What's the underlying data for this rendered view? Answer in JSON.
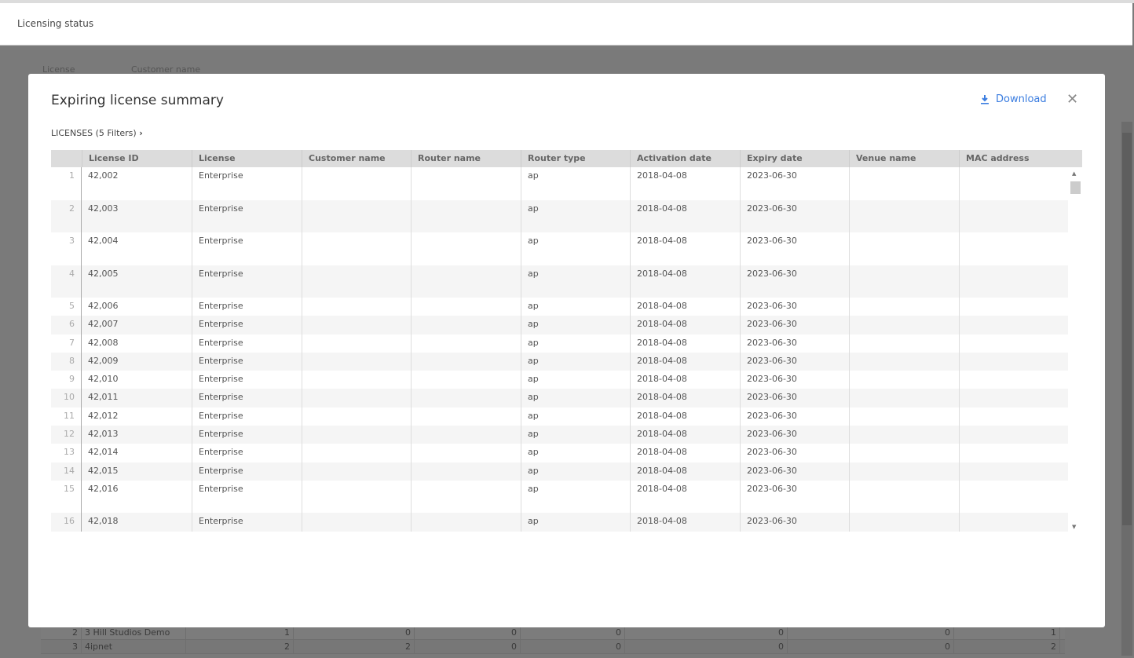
{
  "page": {
    "title": "Licensing status"
  },
  "background_table": {
    "headers": [
      "License",
      "Customer name"
    ],
    "rows": [
      {
        "n": "2",
        "name": "3 Hill Studios Demo",
        "values": [
          "1",
          "0",
          "0",
          "0",
          "0",
          "0",
          "1"
        ]
      },
      {
        "n": "3",
        "name": "4ipnet",
        "values": [
          "2",
          "2",
          "0",
          "0",
          "0",
          "0",
          "2"
        ]
      }
    ]
  },
  "modal": {
    "title": "Expiring license summary",
    "download_label": "Download",
    "download_icon": "download-icon",
    "close_icon": "close-icon",
    "filters_label": "LICENSES (5 Filters)",
    "accent_color": "#3b7de0",
    "columns": [
      "",
      "License ID",
      "License",
      "Customer name",
      "Router name",
      "Router type",
      "Activation date",
      "Expiry date",
      "Venue name",
      "MAC address"
    ],
    "rows": [
      {
        "n": "1",
        "id": "42,002",
        "license": "Enterprise",
        "customer": "",
        "router": "",
        "type": "ap",
        "activation": "2018-04-08",
        "expiry": "2023-06-30",
        "venue": "",
        "mac": ""
      },
      {
        "n": "2",
        "id": "42,003",
        "license": "Enterprise",
        "customer": "",
        "router": "",
        "type": "ap",
        "activation": "2018-04-08",
        "expiry": "2023-06-30",
        "venue": "",
        "mac": ""
      },
      {
        "n": "3",
        "id": "42,004",
        "license": "Enterprise",
        "customer": "",
        "router": "",
        "type": "ap",
        "activation": "2018-04-08",
        "expiry": "2023-06-30",
        "venue": "",
        "mac": ""
      },
      {
        "n": "4",
        "id": "42,005",
        "license": "Enterprise",
        "customer": "",
        "router": "",
        "type": "ap",
        "activation": "2018-04-08",
        "expiry": "2023-06-30",
        "venue": "",
        "mac": ""
      },
      {
        "n": "5",
        "id": "42,006",
        "license": "Enterprise",
        "customer": "",
        "router": "",
        "type": "ap",
        "activation": "2018-04-08",
        "expiry": "2023-06-30",
        "venue": "",
        "mac": ""
      },
      {
        "n": "6",
        "id": "42,007",
        "license": "Enterprise",
        "customer": "",
        "router": "",
        "type": "ap",
        "activation": "2018-04-08",
        "expiry": "2023-06-30",
        "venue": "",
        "mac": ""
      },
      {
        "n": "7",
        "id": "42,008",
        "license": "Enterprise",
        "customer": "",
        "router": "",
        "type": "ap",
        "activation": "2018-04-08",
        "expiry": "2023-06-30",
        "venue": "",
        "mac": ""
      },
      {
        "n": "8",
        "id": "42,009",
        "license": "Enterprise",
        "customer": "",
        "router": "",
        "type": "ap",
        "activation": "2018-04-08",
        "expiry": "2023-06-30",
        "venue": "",
        "mac": ""
      },
      {
        "n": "9",
        "id": "42,010",
        "license": "Enterprise",
        "customer": "",
        "router": "",
        "type": "ap",
        "activation": "2018-04-08",
        "expiry": "2023-06-30",
        "venue": "",
        "mac": ""
      },
      {
        "n": "10",
        "id": "42,011",
        "license": "Enterprise",
        "customer": "",
        "router": "",
        "type": "ap",
        "activation": "2018-04-08",
        "expiry": "2023-06-30",
        "venue": "",
        "mac": ""
      },
      {
        "n": "11",
        "id": "42,012",
        "license": "Enterprise",
        "customer": "",
        "router": "",
        "type": "ap",
        "activation": "2018-04-08",
        "expiry": "2023-06-30",
        "venue": "",
        "mac": ""
      },
      {
        "n": "12",
        "id": "42,013",
        "license": "Enterprise",
        "customer": "",
        "router": "",
        "type": "ap",
        "activation": "2018-04-08",
        "expiry": "2023-06-30",
        "venue": "",
        "mac": ""
      },
      {
        "n": "13",
        "id": "42,014",
        "license": "Enterprise",
        "customer": "",
        "router": "",
        "type": "ap",
        "activation": "2018-04-08",
        "expiry": "2023-06-30",
        "venue": "",
        "mac": ""
      },
      {
        "n": "14",
        "id": "42,015",
        "license": "Enterprise",
        "customer": "",
        "router": "",
        "type": "ap",
        "activation": "2018-04-08",
        "expiry": "2023-06-30",
        "venue": "",
        "mac": ""
      },
      {
        "n": "15",
        "id": "42,016",
        "license": "Enterprise",
        "customer": "",
        "router": "",
        "type": "ap",
        "activation": "2018-04-08",
        "expiry": "2023-06-30",
        "venue": "",
        "mac": ""
      },
      {
        "n": "16",
        "id": "42,018",
        "license": "Enterprise",
        "customer": "",
        "router": "",
        "type": "ap",
        "activation": "2018-04-08",
        "expiry": "2023-06-30",
        "venue": "",
        "mac": ""
      }
    ]
  }
}
